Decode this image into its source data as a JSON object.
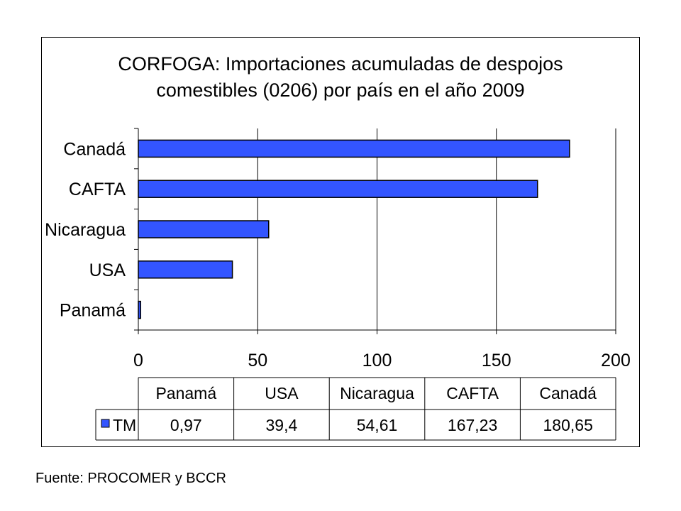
{
  "chart_data": {
    "type": "bar",
    "orientation": "horizontal",
    "title_lines": [
      "CORFOGA: Importaciones acumuladas de despojos",
      "comestibles (0206) por país en el año 2009"
    ],
    "categories": [
      "Panamá",
      "USA",
      "Nicaragua",
      "CAFTA",
      "Canadá"
    ],
    "series": [
      {
        "name": "TM",
        "values": [
          0.97,
          39.4,
          54.61,
          167.23,
          180.65
        ],
        "color": "#3355ff"
      }
    ],
    "value_labels": [
      "0,97",
      "39,4",
      "54,61",
      "167,23",
      "180,65"
    ],
    "xlim": [
      0,
      200
    ],
    "xticks": [
      0,
      50,
      100,
      150,
      200
    ],
    "xtick_labels": [
      "0",
      "50",
      "100",
      "150",
      "200"
    ],
    "grid": true,
    "legend_placement": "data-table"
  },
  "footer": {
    "source": "Fuente: PROCOMER y BCCR"
  }
}
